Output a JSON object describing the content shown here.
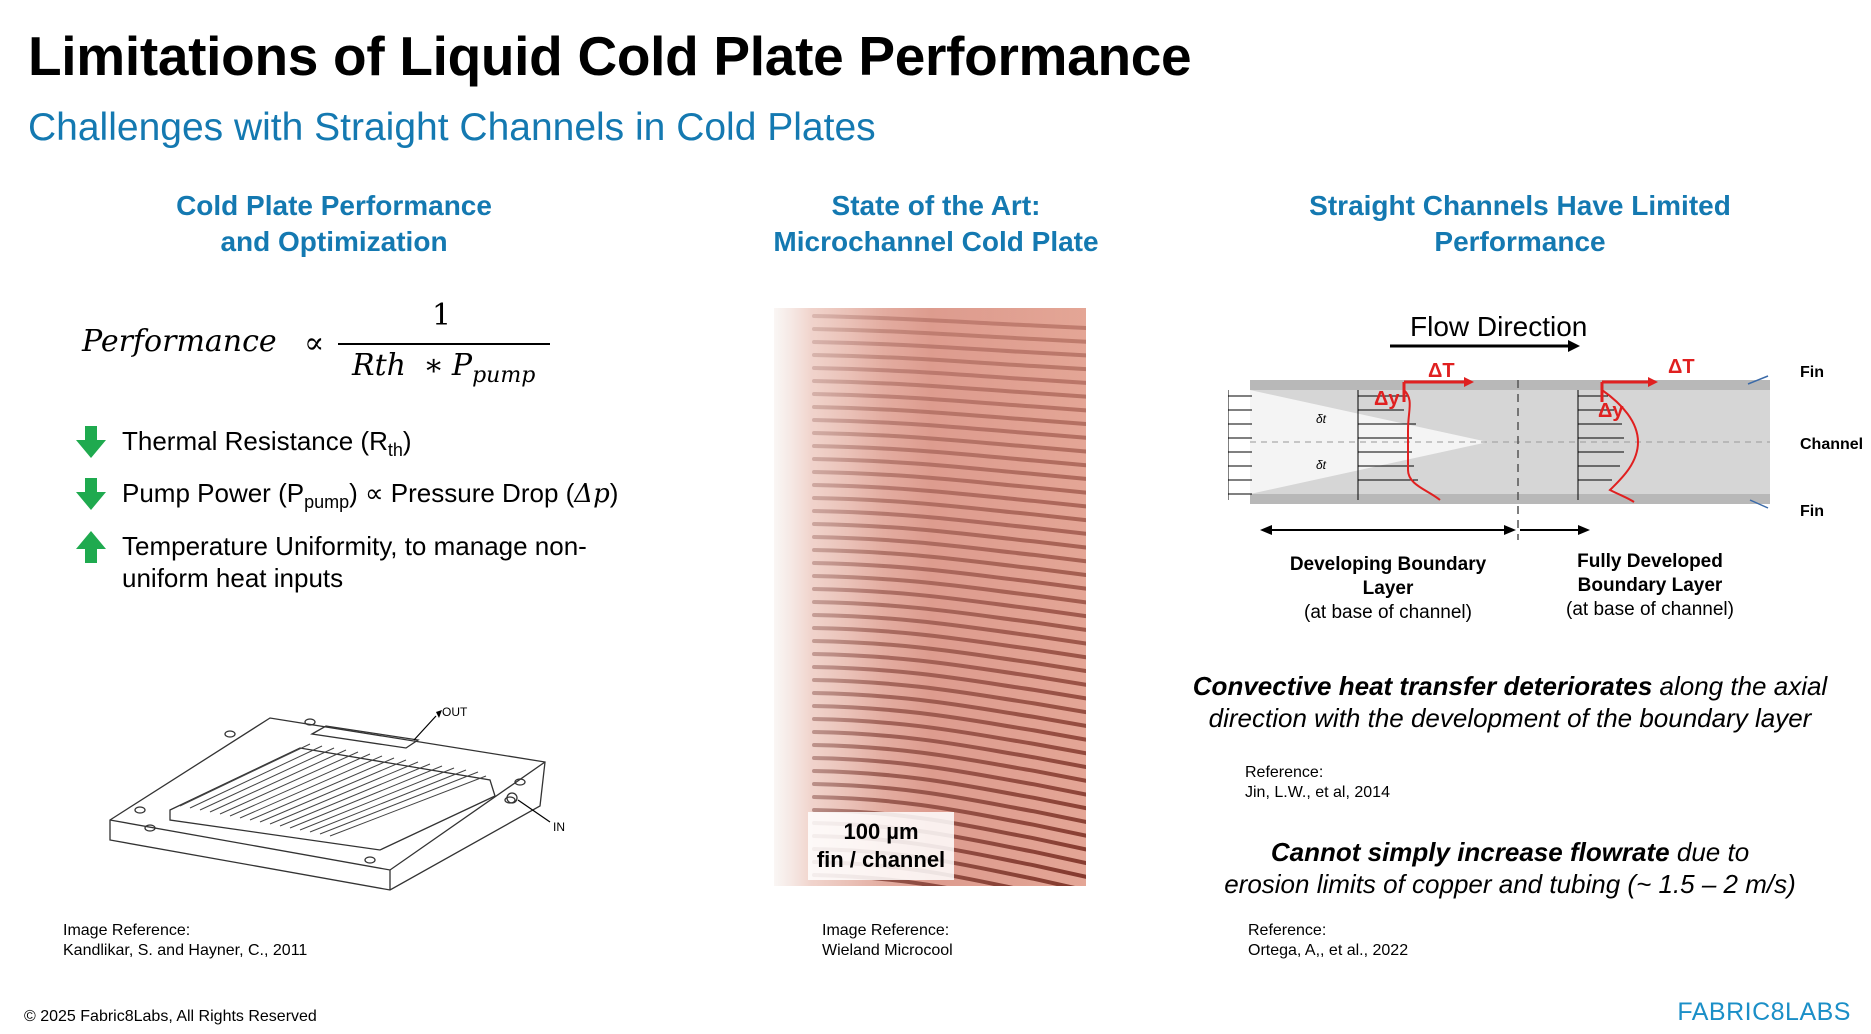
{
  "slide": {
    "title": "Limitations of Liquid Cold Plate Performance",
    "subtitle": "Challenges with Straight Channels in Cold Plates"
  },
  "left": {
    "heading_line1": "Cold Plate Performance",
    "heading_line2": "and Optimization",
    "formula": {
      "lhs": "Performance",
      "proportional": "∝",
      "numerator": "1",
      "denominator_a": "Rth",
      "operator": "∗",
      "denominator_p": "P",
      "denominator_sub": "pump"
    },
    "bullets": [
      {
        "direction": "down",
        "text": "Thermal Resistance (R",
        "sub": "th",
        "tail": ")"
      },
      {
        "direction": "down",
        "text": "Pump Power (P",
        "sub": "pump",
        "tail": ") ∝ Pressure Drop (",
        "tail_italic": "Δp",
        "tail_end": ")"
      },
      {
        "direction": "up",
        "text_line1": "Temperature Uniformity, to manage non-",
        "text_line2": "uniform heat inputs"
      }
    ],
    "diagram_labels": {
      "out": "OUT",
      "in": "IN"
    },
    "reference_label": "Image Reference:",
    "reference_text": "Kandlikar, S. and Hayner, C., 2011"
  },
  "middle": {
    "heading_line1": "State of the Art:",
    "heading_line2": "Microchannel Cold Plate",
    "photo_label_line1": "100 µm",
    "photo_label_line2": "fin / channel",
    "reference_label": "Image Reference:",
    "reference_text": "Wieland Microcool"
  },
  "right": {
    "heading_line1": "Straight Channels Have Limited",
    "heading_line2": "Performance",
    "diagram": {
      "flow_direction": "Flow Direction",
      "delta_t": "ΔT",
      "delta_y": "Δy",
      "delta_t_2": "ΔT",
      "delta_y_2": "Δy",
      "delta_top": "δt",
      "delta_bottom": "δt",
      "fin_top": "Fin",
      "channel": "Channel",
      "fin_bottom": "Fin",
      "developing_line1": "Developing Boundary",
      "developing_line2": "Layer",
      "developing_line3": "(at base of channel)",
      "developed_line1": "Fully Developed",
      "developed_line2": "Boundary Layer",
      "developed_line3": "(at base of channel)"
    },
    "note1_bold": "Convective heat transfer deteriorates",
    "note1_rest": " along the axial",
    "note1_line2": "direction with the development of the boundary layer",
    "ref1_label": "Reference:",
    "ref1_text": "Jin, L.W., et al, 2014",
    "note2_bold": "Cannot simply increase flowrate",
    "note2_rest": " due to",
    "note2_line2": "erosion limits of copper and tubing (~ 1.5 – 2 m/s)",
    "ref2_label": "Reference:",
    "ref2_text": "Ortega, A,, et al., 2022"
  },
  "footer": {
    "copyright": "© 2025 Fabric8Labs, All Rights Reserved",
    "brand": "FABRIC8LABS"
  },
  "colors": {
    "accent_blue": "#1479b1",
    "arrow_green": "#1faa4f",
    "copper": "#d4897a",
    "red_profile": "#e02020"
  }
}
